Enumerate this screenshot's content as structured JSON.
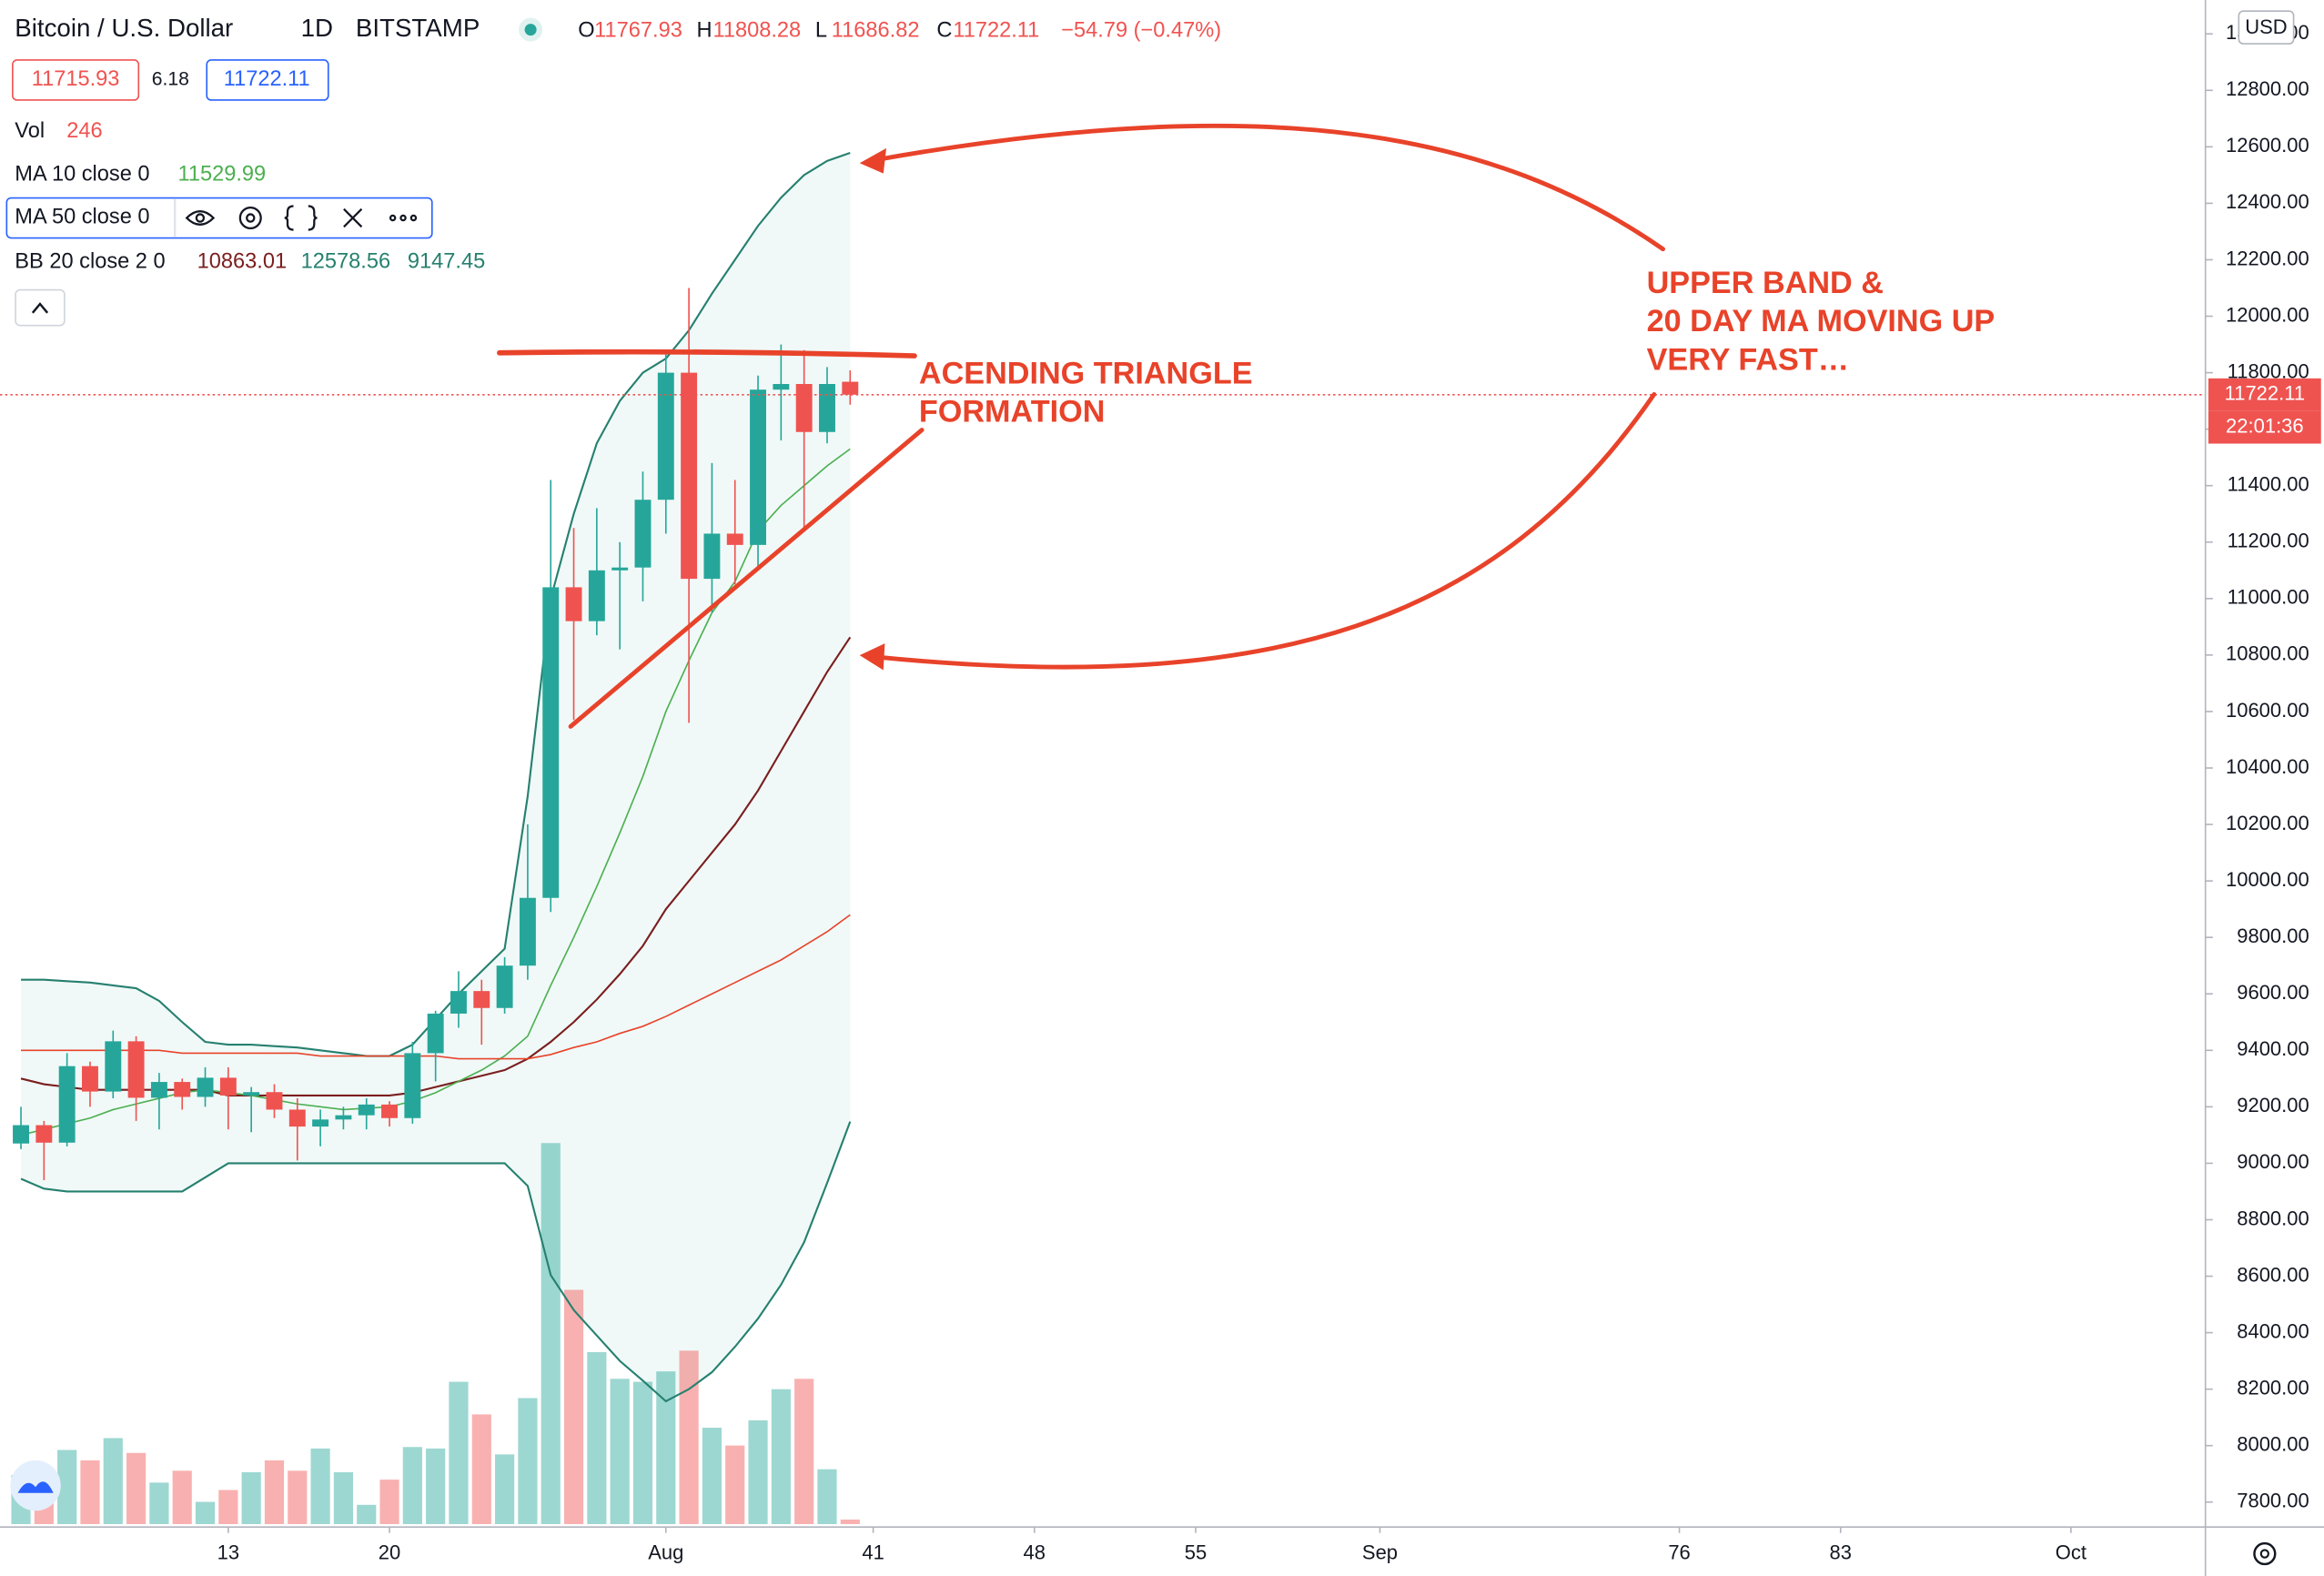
{
  "header": {
    "symbol": "Bitcoin / U.S. Dollar",
    "interval": "1D",
    "exchange": "BITSTAMP",
    "ohlc_labels": [
      "O",
      "H",
      "L",
      "C"
    ],
    "change": "−54.79 (−0.47%)",
    "bid": "11715.93",
    "spread": "6.18",
    "ask": "11722.11"
  },
  "legend": {
    "volume_label": "Vol"
  },
  "price_axis": {
    "currency": "USD",
    "countdown": "22:01:36"
  },
  "annotations": {
    "triangle": [
      "ACENDING TRIANGLE",
      "FORMATION"
    ],
    "bands": [
      "UPPER BAND &",
      "20 DAY MA MOVING UP",
      "VERY FAST…"
    ]
  },
  "chart_data": {
    "type": "candlestick",
    "up_color": "#26a69a",
    "down_color": "#ef5350",
    "x": [
      4,
      5,
      6,
      7,
      8,
      9,
      10,
      11,
      12,
      13,
      14,
      15,
      16,
      17,
      18,
      19,
      20,
      21,
      22,
      23,
      24,
      25,
      26,
      27,
      28,
      29,
      30,
      31,
      32,
      33,
      34,
      35,
      36,
      37,
      38,
      39,
      40
    ],
    "open": [
      9070,
      9135,
      9073,
      9344,
      9254,
      9432,
      9232,
      9288,
      9235,
      9303,
      9240,
      9252,
      9190,
      9130,
      9155,
      9170,
      9208,
      9160,
      9390,
      9530,
      9610,
      9550,
      9700,
      9940,
      11040,
      10920,
      11100,
      11110,
      11350,
      11800,
      11070,
      11230,
      11190,
      11740,
      11760,
      11590,
      11767.93
    ],
    "high": [
      9200,
      9150,
      9390,
      9360,
      9470,
      9450,
      9320,
      9300,
      9340,
      9340,
      9270,
      9280,
      9230,
      9190,
      9200,
      9230,
      9220,
      9430,
      9540,
      9680,
      9650,
      9730,
      10200,
      11420,
      11250,
      11320,
      11200,
      11450,
      11870,
      12100,
      11480,
      11420,
      11790,
      11900,
      11880,
      11820,
      11808.28
    ],
    "low": [
      9050,
      8940,
      9060,
      9200,
      9230,
      9150,
      9120,
      9190,
      9200,
      9120,
      9110,
      9160,
      9010,
      9060,
      9120,
      9120,
      9130,
      9140,
      9290,
      9480,
      9420,
      9530,
      9650,
      9890,
      10570,
      10870,
      10820,
      10990,
      11230,
      10560,
      10950,
      11050,
      11100,
      11560,
      11250,
      11550,
      11686.82
    ],
    "close": [
      9135,
      9073,
      9344,
      9254,
      9432,
      9232,
      9288,
      9235,
      9303,
      9240,
      9252,
      9190,
      9130,
      9155,
      9170,
      9208,
      9160,
      9390,
      9530,
      9610,
      9550,
      9700,
      9940,
      11040,
      10920,
      11100,
      11110,
      11350,
      11800,
      11070,
      11230,
      11190,
      11740,
      11760,
      11590,
      11760,
      11722.11
    ],
    "volume": [
      2640,
      3040,
      4000,
      3440,
      4640,
      3840,
      2240,
      2880,
      1200,
      1840,
      2800,
      3440,
      2880,
      4080,
      2800,
      1040,
      2400,
      4160,
      4080,
      7680,
      5920,
      3760,
      6800,
      20560,
      12640,
      9280,
      7840,
      7680,
      8240,
      9360,
      5200,
      4240,
      5600,
      7280,
      7840,
      2960,
      246
    ],
    "volume_lim": [
      0,
      82240
    ],
    "ma": [
      {
        "name": "MA 10 close 0",
        "color": "#4caf50",
        "values": [
          9100,
          9120,
          9140,
          9160,
          9190,
          9210,
          9230,
          9250,
          9260,
          9250,
          9240,
          9225,
          9210,
          9200,
          9190,
          9195,
          9200,
          9220,
          9250,
          9290,
          9330,
          9380,
          9450,
          9630,
          9800,
          9980,
          10170,
          10370,
          10600,
          10780,
          10950,
          11060,
          11240,
          11330,
          11400,
          11470,
          11529.99
        ]
      },
      {
        "name": "MA 50 close 0",
        "color": "#e8432a",
        "values": [
          9400,
          9400,
          9400,
          9400,
          9400,
          9400,
          9400,
          9390,
          9390,
          9390,
          9390,
          9390,
          9390,
          9380,
          9380,
          9380,
          9380,
          9380,
          9380,
          9370,
          9370,
          9370,
          9370,
          9385,
          9410,
          9430,
          9460,
          9485,
          9520,
          9560,
          9600,
          9640,
          9680,
          9720,
          9770,
          9820,
          9880
        ]
      }
    ],
    "bb": {
      "name": "BB 20 close 2 0",
      "band_color": "#26a69a",
      "basis": {
        "color": "#7b1e1e",
        "values": [
          9300,
          9280,
          9270,
          9260,
          9260,
          9260,
          9260,
          9260,
          9260,
          9240,
          9240,
          9240,
          9240,
          9240,
          9240,
          9240,
          9240,
          9250,
          9270,
          9290,
          9310,
          9330,
          9370,
          9430,
          9500,
          9580,
          9670,
          9770,
          9900,
          10000,
          10100,
          10200,
          10320,
          10460,
          10600,
          10740,
          10863.01
        ]
      },
      "upper": {
        "color": "#26806f",
        "values": [
          9650,
          9650,
          9645,
          9640,
          9630,
          9620,
          9575,
          9500,
          9430,
          9420,
          9420,
          9415,
          9410,
          9400,
          9390,
          9380,
          9380,
          9420,
          9510,
          9600,
          9680,
          9760,
          10300,
          11000,
          11300,
          11550,
          11700,
          11800,
          11850,
          11950,
          12080,
          12200,
          12320,
          12420,
          12500,
          12550,
          12578.56
        ]
      },
      "lower": {
        "color": "#26806f",
        "values": [
          8945,
          8910,
          8900,
          8900,
          8900,
          8900,
          8900,
          8900,
          8950,
          9000,
          9000,
          9000,
          9000,
          9000,
          9000,
          9000,
          9000,
          9000,
          9000,
          9000,
          9000,
          9000,
          8920,
          8604,
          8480,
          8390,
          8300,
          8230,
          8157,
          8200,
          8260,
          8350,
          8450,
          8570,
          8720,
          8930,
          9147.45
        ]
      }
    },
    "xlim": [
      3.09,
      98.84
    ],
    "xticks": [
      13,
      20,
      {
        "value": 32,
        "label": "Aug"
      },
      41,
      48,
      55,
      {
        "value": 63,
        "label": "Sep"
      },
      76,
      83,
      {
        "value": 93,
        "label": "Oct"
      }
    ],
    "ylim": [
      7722,
      13120
    ],
    "yticks": [
      {
        "value": 7800,
        "label": "7800.00"
      },
      {
        "value": 8000,
        "label": "8000.00"
      },
      {
        "value": 8200,
        "label": "8200.00"
      },
      {
        "value": 8400,
        "label": "8400.00"
      },
      {
        "value": 8600,
        "label": "8600.00"
      },
      {
        "value": 8800,
        "label": "8800.00"
      },
      {
        "value": 9000,
        "label": "9000.00"
      },
      {
        "value": 9200,
        "label": "9200.00"
      },
      {
        "value": 9400,
        "label": "9400.00"
      },
      {
        "value": 9600,
        "label": "9600.00"
      },
      {
        "value": 9800,
        "label": "9800.00"
      },
      {
        "value": 10000,
        "label": "10000.00"
      },
      {
        "value": 10200,
        "label": "10200.00"
      },
      {
        "value": 10400,
        "label": "10400.00"
      },
      {
        "value": 10600,
        "label": "10600.00"
      },
      {
        "value": 10800,
        "label": "10800.00"
      },
      {
        "value": 11000,
        "label": "11000.00"
      },
      {
        "value": 11200,
        "label": "11200.00"
      },
      {
        "value": 11400,
        "label": "11400.00"
      },
      {
        "value": 11600,
        "label": "11600.00"
      },
      {
        "value": 11800,
        "label": "11800.00"
      },
      {
        "value": 12000,
        "label": "12000.00"
      },
      {
        "value": 12200,
        "label": "12200.00"
      },
      {
        "value": 12400,
        "label": "12400.00"
      },
      {
        "value": 12600,
        "label": "12600.00"
      },
      {
        "value": 12800,
        "label": "12800.00"
      },
      {
        "value": 13000,
        "label": "13000.00"
      }
    ]
  }
}
